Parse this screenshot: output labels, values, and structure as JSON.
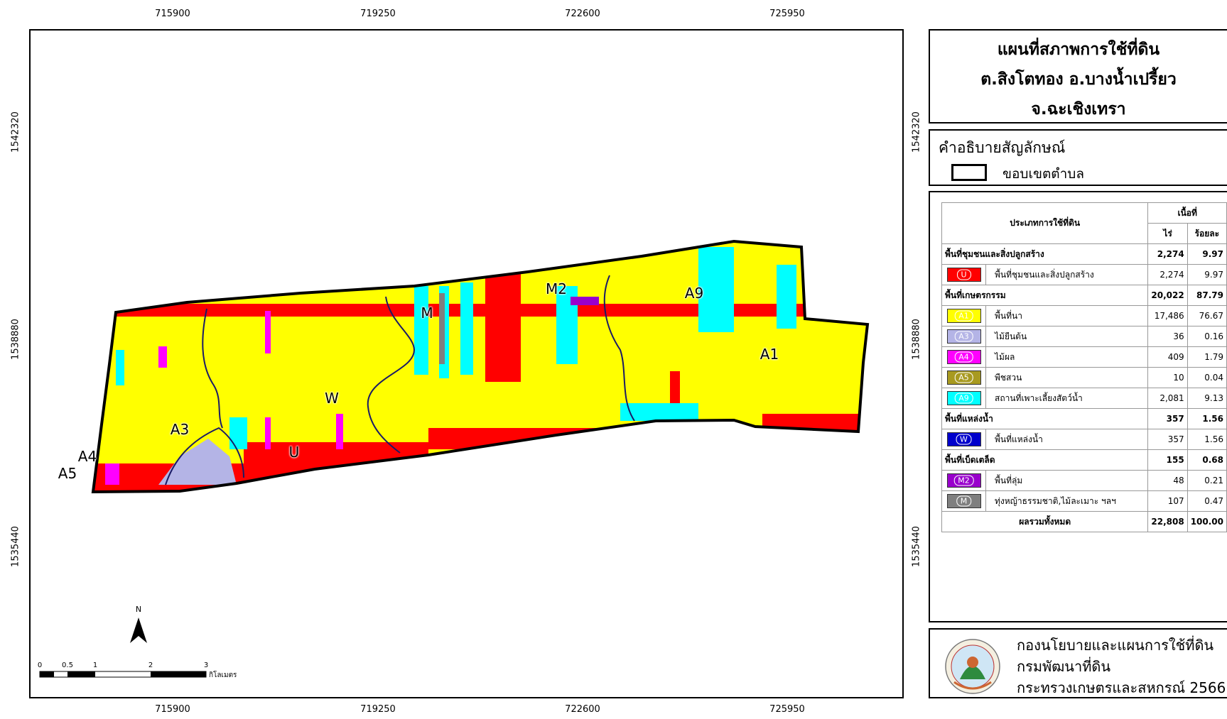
{
  "coords": {
    "x_top": [
      "715900",
      "719250",
      "722600",
      "725950"
    ],
    "x_bottom": [
      "715900",
      "719250",
      "722600",
      "725950"
    ],
    "y_left": [
      "1542320",
      "1538880",
      "1535440"
    ],
    "y_right": [
      "1542320",
      "1538880",
      "1535440"
    ]
  },
  "map": {
    "zone_labels": [
      "M2",
      "A9",
      "M",
      "A1",
      "W",
      "A3",
      "A4",
      "A5",
      "U"
    ]
  },
  "title": {
    "line1": "แผนที่สภาพการใช้ที่ดิน",
    "line2": "ต.สิงโตทอง อ.บางน้ำเปรี้ยว",
    "line3": "จ.ฉะเชิงเทรา"
  },
  "legend": {
    "heading": "คำอธิบายสัญลักษณ์",
    "boundary_label": "ขอบเขตตำบล"
  },
  "table": {
    "header_type": "ประเภทการใช้ที่ดิน",
    "header_area": "เนื้อที่",
    "header_rai": "ไร่",
    "header_pct": "ร้อยละ",
    "rows": [
      {
        "kind": "group",
        "name": "พื้นที่ชุมชนและสิ่งปลูกสร้าง",
        "rai": "2,274",
        "pct": "9.97"
      },
      {
        "kind": "item",
        "code": "U",
        "color": "#ff0000",
        "name": "พื้นที่ชุมชนและสิ่งปลูกสร้าง",
        "rai": "2,274",
        "pct": "9.97"
      },
      {
        "kind": "group",
        "name": "พื้นที่เกษตรกรรม",
        "rai": "20,022",
        "pct": "87.79"
      },
      {
        "kind": "item",
        "code": "A1",
        "color": "#ffff00",
        "name": "พื้นที่นา",
        "rai": "17,486",
        "pct": "76.67"
      },
      {
        "kind": "item",
        "code": "A3",
        "color": "#b4b4e6",
        "name": "ไม้ยืนต้น",
        "rai": "36",
        "pct": "0.16"
      },
      {
        "kind": "item",
        "code": "A4",
        "color": "#ff00ff",
        "name": "ไม้ผล",
        "rai": "409",
        "pct": "1.79"
      },
      {
        "kind": "item",
        "code": "A5",
        "color": "#a89a20",
        "name": "พืชสวน",
        "rai": "10",
        "pct": "0.04"
      },
      {
        "kind": "item",
        "code": "A9",
        "color": "#00ffff",
        "name": "สถานที่เพาะเลี้ยงสัตว์น้ำ",
        "rai": "2,081",
        "pct": "9.13"
      },
      {
        "kind": "group",
        "name": "พื้นที่แหล่งน้ำ",
        "rai": "357",
        "pct": "1.56"
      },
      {
        "kind": "item",
        "code": "W",
        "color": "#0000cc",
        "name": "พื้นที่แหล่งน้ำ",
        "rai": "357",
        "pct": "1.56"
      },
      {
        "kind": "group",
        "name": "พื้นที่เบ็ดเตล็ด",
        "rai": "155",
        "pct": "0.68"
      },
      {
        "kind": "item",
        "code": "M2",
        "color": "#9900cc",
        "name": "พื้นที่ลุ่ม",
        "rai": "48",
        "pct": "0.21"
      },
      {
        "kind": "item",
        "code": "M",
        "color": "#7f7f7f",
        "name": "ทุ่งหญ้าธรรมชาติ,ไม้ละเมาะ ฯลฯ",
        "rai": "107",
        "pct": "0.47"
      },
      {
        "kind": "total",
        "name": "ผลรวมทั้งหมด",
        "rai": "22,808",
        "pct": "100.00"
      }
    ]
  },
  "scale": {
    "ticks": [
      "0",
      "0.5",
      "1",
      "2",
      "3"
    ],
    "unit": "กิโลเมตร"
  },
  "north_label": "N",
  "footer": {
    "line1": "กองนโยบายและแผนการใช้ที่ดิน",
    "line2": "กรมพัฒนาที่ดิน",
    "line3": "กระทรวงเกษตรและสหกรณ์ 2566"
  },
  "colors": {
    "community": "#ff0000",
    "paddy": "#ffff00",
    "aquaculture": "#00ffff",
    "orchard": "#ff00ff",
    "water": "#0000cc",
    "marsh": "#9900cc",
    "grass": "#7f7f7f",
    "perennial": "#b4b4e6",
    "boundary": "#000000"
  }
}
